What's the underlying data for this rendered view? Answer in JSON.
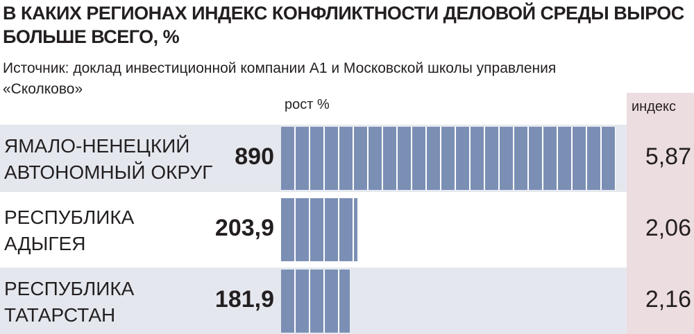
{
  "chart_data": {
    "type": "bar",
    "orientation": "horizontal",
    "title": "В КАКИХ РЕГИОНАХ ИНДЕКС КОНФЛИКТНОСТИ ДЕЛОВОЙ СРЕДЫ ВЫРОС БОЛЬШЕ ВСЕГО, %",
    "subtitle": "Источник: доклад инвестиционной компании А1 и Московской школы управления «Сколково»",
    "value_header": "рост %",
    "index_header": "индекс",
    "categories": [
      "ЯМАЛО-НЕНЕЦКИЙ АВТОНОМНЫЙ ОКРУГ",
      "РЕСПУБЛИКА АДЫГЕЯ",
      "РЕСПУБЛИКА ТАТАРСТАН"
    ],
    "values": [
      890,
      203.9,
      181.9
    ],
    "value_labels": [
      "890",
      "203,9",
      "181,9"
    ],
    "index_values": [
      5.87,
      2.06,
      2.16
    ],
    "index_labels": [
      "5,87",
      "2,06",
      "2,16"
    ],
    "color": "#7b8fb5"
  }
}
